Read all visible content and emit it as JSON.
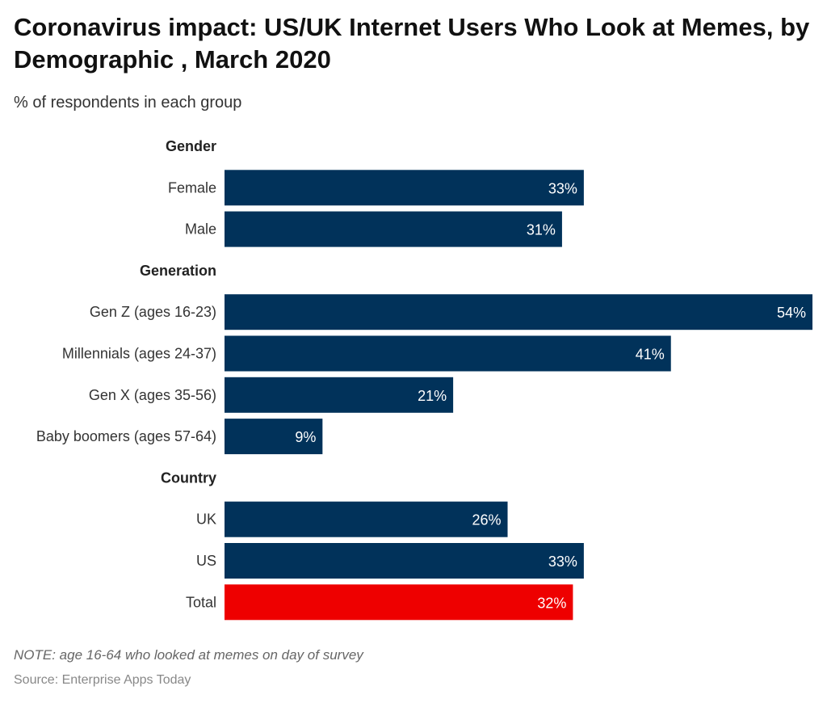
{
  "title": "Coronavirus impact: US/UK Internet Users Who Look at Memes, by Demographic , March 2020",
  "subtitle": "% of respondents in each group",
  "note": "NOTE: age 16-64 who looked at memes on day of survey",
  "source": "Source: Enterprise Apps Today",
  "chart_data": {
    "type": "bar",
    "orientation": "horizontal",
    "unit": "%",
    "xlim": [
      0,
      54
    ],
    "grid": false,
    "colors": {
      "default": "#01325a",
      "highlight": "#ee0000"
    },
    "groups": [
      {
        "label": "Gender",
        "items": [
          {
            "label": "Female",
            "value": 33
          },
          {
            "label": "Male",
            "value": 31
          }
        ]
      },
      {
        "label": "Generation",
        "items": [
          {
            "label": "Gen Z (ages 16-23)",
            "value": 54
          },
          {
            "label": "Millennials (ages 24-37)",
            "value": 41
          },
          {
            "label": "Gen X (ages 35-56)",
            "value": 21
          },
          {
            "label": "Baby boomers (ages 57-64)",
            "value": 9
          }
        ]
      },
      {
        "label": "Country",
        "items": [
          {
            "label": "UK",
            "value": 26
          },
          {
            "label": "US",
            "value": 33
          },
          {
            "label": "Total",
            "value": 32,
            "highlight": true
          }
        ]
      }
    ]
  }
}
